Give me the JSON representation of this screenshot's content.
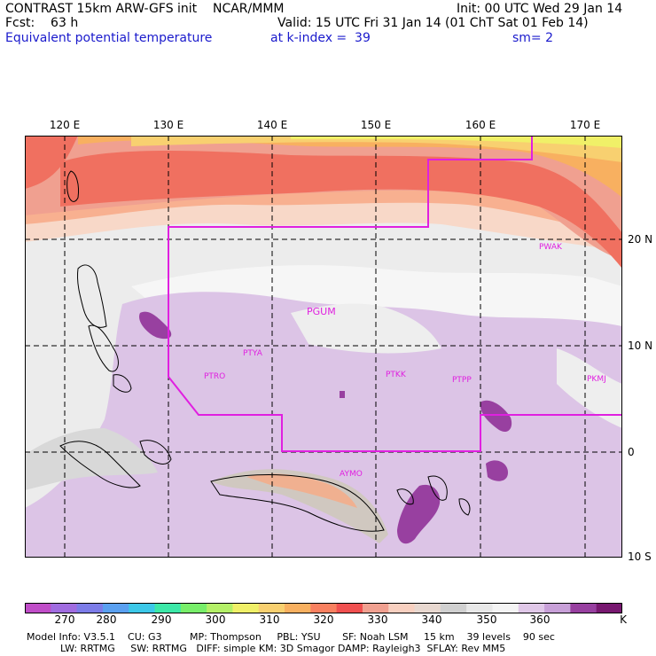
{
  "header": {
    "title": "CONTRAST 15km ARW-GFS init    NCAR/MMM",
    "init": "Init: 00 UTC Wed 29 Jan 14",
    "fcst": "Fcst:    63 h",
    "valid": "Valid: 15 UTC Fri 31 Jan 14 (01 ChT Sat 01 Feb 14)",
    "field": "Equivalent potential temperature",
    "level": "at k-index =  39",
    "smooth": "sm= 2"
  },
  "axes": {
    "lon_labels": [
      "120 E",
      "130 E",
      "140 E",
      "150 E",
      "160 E",
      "170 E"
    ],
    "lat_labels": [
      "20 N",
      "10 N",
      "0",
      "10 S"
    ]
  },
  "stations": [
    "PGUM",
    "PTYA",
    "PTRO",
    "PTKK",
    "PTPP",
    "PKMJ",
    "PWAK",
    "AYMO"
  ],
  "colorbar": {
    "unit": "K",
    "labels": [
      "270",
      "280",
      "290",
      "300",
      "310",
      "320",
      "330",
      "340",
      "350",
      "360"
    ],
    "colors": [
      "#c04dc8",
      "#a06ce0",
      "#7c7ce8",
      "#5aa0f0",
      "#3cc8e8",
      "#3ce8a8",
      "#78ee6a",
      "#b4f068",
      "#f0f068",
      "#f8d070",
      "#f8b060",
      "#f88060",
      "#f05050",
      "#f0a090",
      "#f8d0c0",
      "#e8d8d0",
      "#d0d0d0",
      "#e8e8e8",
      "#f4f4f4",
      "#e0c8e8",
      "#c8a0d8",
      "#9840a0",
      "#781870"
    ]
  },
  "model_info": {
    "line1": "Model Info: V3.5.1    CU: G3         MP: Thompson     PBL: YSU       SF: Noah LSM     15 km    39 levels    90 sec",
    "line2": "LW: RRTMG     SW: RRTMG   DIFF: simple KM: 3D Smagor DAMP: Rayleigh3  SFLAY: Rev MM5"
  }
}
